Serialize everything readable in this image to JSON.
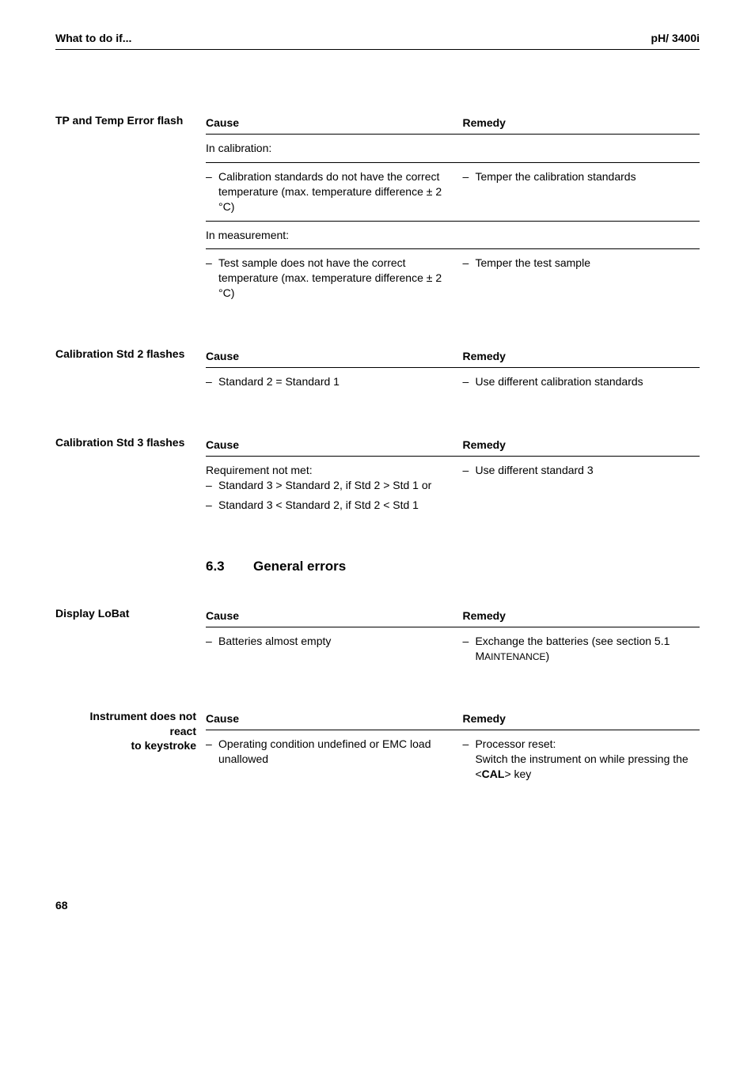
{
  "header": {
    "left": "What to do if...",
    "right": "pH/ 3400i"
  },
  "blocks": [
    {
      "label": "TP and Temp Error flash",
      "headers": {
        "cause": "Cause",
        "remedy": "Remedy"
      },
      "rows": [
        {
          "cause_plain": "In calibration:",
          "remedy_plain": ""
        },
        {
          "cause_dash": "Calibration standards do not have the correct temperature (max. temperature difference ± 2 °C)",
          "remedy_dash": "Temper the calibration standards"
        },
        {
          "cause_plain": "In measurement:",
          "remedy_plain": ""
        },
        {
          "cause_dash": "Test sample does not have the correct temperature (max. temperature difference ± 2 °C)",
          "remedy_dash": "Temper the test sample"
        }
      ]
    },
    {
      "label": "Calibration Std 2 flashes",
      "headers": {
        "cause": "Cause",
        "remedy": "Remedy"
      },
      "rows": [
        {
          "cause_dash": "Standard 2 = Standard 1",
          "remedy_dash": "Use different calibration standards"
        }
      ]
    },
    {
      "label": "Calibration Std 3 flashes",
      "headers": {
        "cause": "Cause",
        "remedy": "Remedy"
      },
      "rows": [
        {
          "cause_multi": {
            "intro": "Requirement not met:",
            "items": [
              "Standard 3 > Standard 2, if Std 2 > Std 1 or",
              "Standard 3 < Standard 2, if Std 2 < Std 1"
            ]
          },
          "remedy_dash": "Use different standard 3"
        }
      ]
    }
  ],
  "section": {
    "number": "6.3",
    "title": "General errors"
  },
  "blocks2": [
    {
      "label": "Display LoBat",
      "headers": {
        "cause": "Cause",
        "remedy": "Remedy"
      },
      "rows": [
        {
          "cause_dash": "Batteries almost empty",
          "remedy_dash_html": "Exchange the batteries (see section 5.1 M<span style=\"font-size:12px\">AINTENANCE</span>)"
        }
      ]
    },
    {
      "label": "Instrument does not react\nto keystroke",
      "label_lines": [
        "Instrument does not",
        "react",
        "to keystroke"
      ],
      "label_align": "right",
      "headers": {
        "cause": "Cause",
        "remedy": "Remedy"
      },
      "rows": [
        {
          "cause_dash": "Operating condition undefined or EMC load unallowed",
          "remedy_dash_html": "Processor reset:<br>Switch the instrument on while pressing the &lt;<b>CAL</b>&gt; key"
        }
      ]
    }
  ],
  "page_number": "68"
}
